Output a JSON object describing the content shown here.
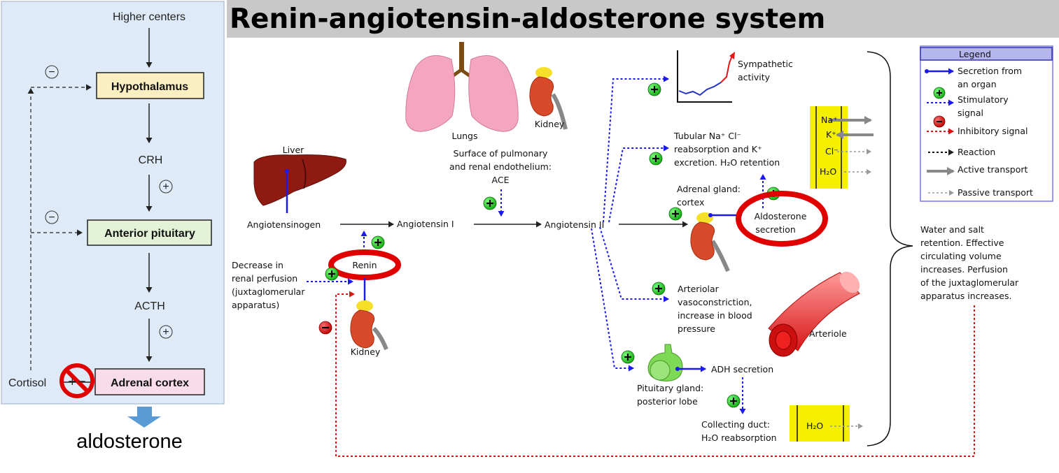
{
  "title": "Renin-angiotensin-aldosterone system",
  "hpa_axis": {
    "higher_centers": "Higher centers",
    "hypothalamus": "Hypothalamus",
    "crh": "CRH",
    "anterior_pituitary": "Anterior pituitary",
    "acth": "ACTH",
    "adrenal_cortex": "Adrenal cortex",
    "cortisol": "Cortisol",
    "minus_symbol": "−",
    "plus_symbol": "+",
    "output": "aldosterone"
  },
  "raas": {
    "liver": "Liver",
    "angiotensinogen": "Angiotensinogen",
    "angiotensin_1": "Angiotensin I",
    "angiotensin_2": "Angiotensin II",
    "lungs": "Lungs",
    "kidney_top": "Kidney",
    "ace_line1": "Surface of pulmonary",
    "ace_line2": "and renal endothelium:",
    "ace_line3": "ACE",
    "renin": "Renin",
    "kidney_bottom": "Kidney",
    "perfusion_line1": "Decrease in",
    "perfusion_line2": "renal perfusion",
    "perfusion_line3": "(juxtaglomerular",
    "perfusion_line4": "apparatus)",
    "sympathetic_line1": "Sympathetic",
    "sympathetic_line2": "activity",
    "tubular_line1": "Tubular Na⁺ Cl⁻",
    "tubular_line2": "reabsorption and K⁺",
    "tubular_line3": "excretion. H₂O retention",
    "adrenal_line1": "Adrenal gland:",
    "adrenal_line2": "cortex",
    "aldo_line1": "Aldosterone",
    "aldo_line2": "secretion",
    "arteriolar_line1": "Arteriolar",
    "arteriolar_line2": "vasoconstriction,",
    "arteriolar_line3": "increase in blood",
    "arteriolar_line4": "pressure",
    "arteriole": "Arteriole",
    "adh": "ADH secretion",
    "pituitary_line1": "Pituitary gland:",
    "pituitary_line2": "posterior lobe",
    "collecting_line1": "Collecting duct:",
    "collecting_line2": "H₂O reabsorption",
    "water_line1": "Water and salt",
    "water_line2": "retention. Effective",
    "water_line3": "circulating volume",
    "water_line4": "increases. Perfusion",
    "water_line5": "of the juxtaglomerular",
    "water_line6": "apparatus increases.",
    "ion_na": "Na⁺",
    "ion_k": "K⁺",
    "ion_cl": "Cl⁻",
    "ion_h2o": "H₂O",
    "duct_h2o": "H₂O"
  },
  "legend": {
    "title": "Legend",
    "secretion_line1": "Secretion from",
    "secretion_line2": "an organ",
    "stimulatory_line1": "Stimulatory",
    "stimulatory_line2": "signal",
    "inhibitory": "Inhibitory signal",
    "reaction": "Reaction",
    "active": "Active transport",
    "passive": "Passive transport"
  },
  "colors": {
    "panel_bg": "#deeaf7",
    "hypothalamus_fill": "#fbefc1",
    "pituitary_fill": "#e3f1d7",
    "adrenal_fill": "#f8dcea",
    "title_bar": "#c8c8c8",
    "stimulatory": "#22cc22",
    "inhibitory": "#dd1111",
    "secretion": "#1a1aee",
    "highlight": "#e00000",
    "ion_box": "#f5f000",
    "output_arrow": "#5b9bd5"
  }
}
